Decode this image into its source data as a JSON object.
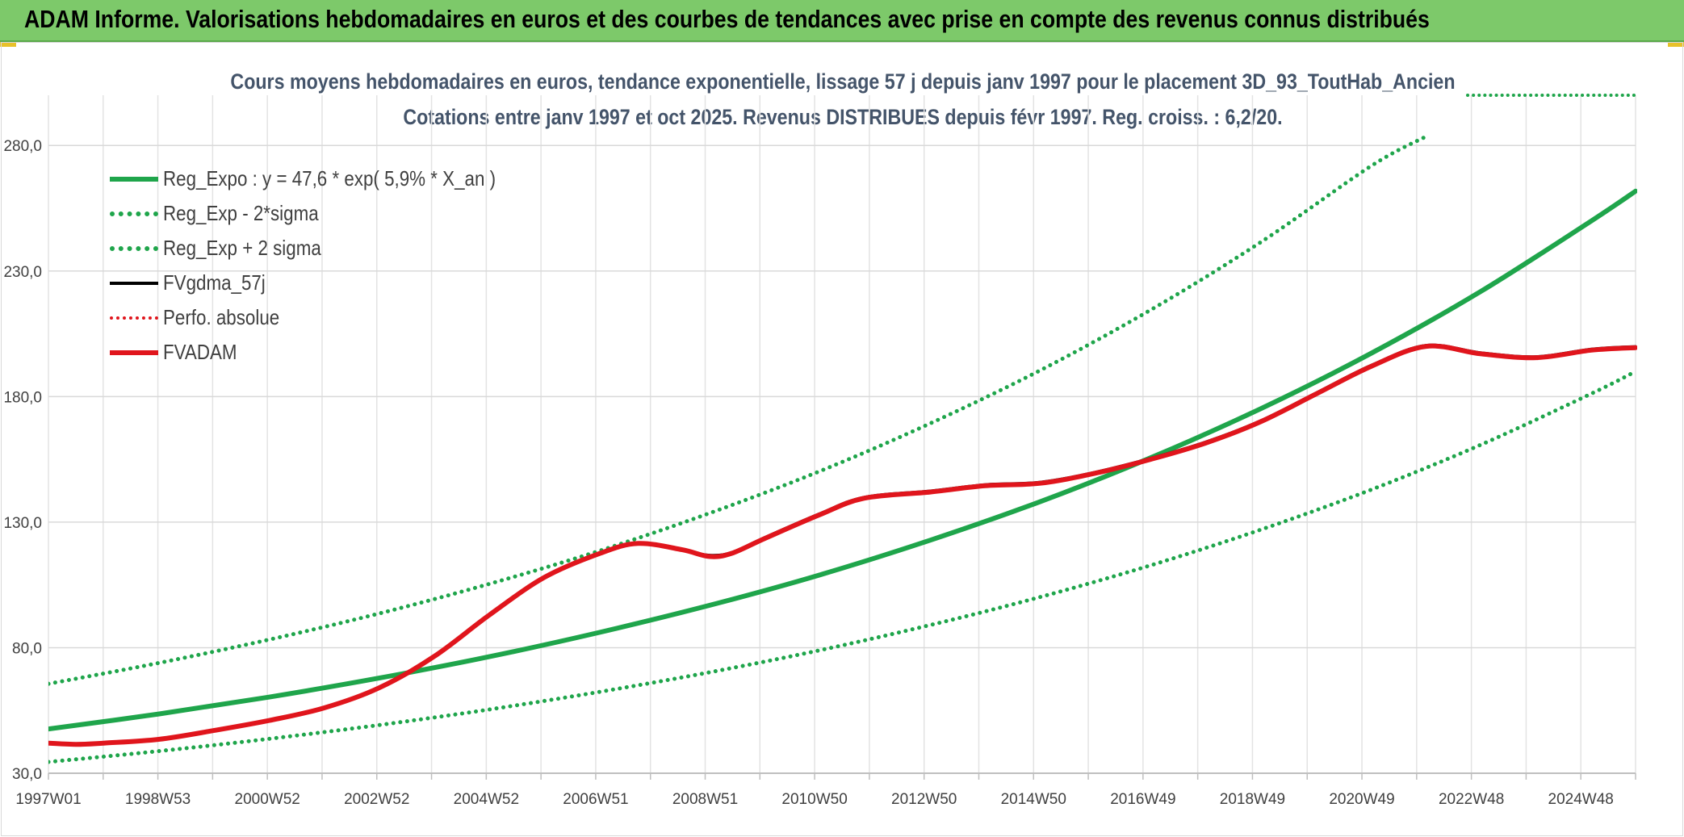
{
  "banner": {
    "title": "ADAM Informe. Valorisations hebdomadaires en euros et des courbes de tendances avec prise en compte des revenus connus distribués"
  },
  "chart_data": {
    "type": "line",
    "title": "Cours moyens hebdomadaires en euros, tendance exponentielle, lissage 57 j depuis janv 1997 pour le placement 3D_93_ToutHab_Ancien",
    "subtitle": "Cotations entre janv 1997 et oct 2025. Revenus DISTRIBUES depuis févr 1997. Reg. croiss. : 6,2/20.",
    "xlabel": "",
    "ylabel": "",
    "ylim": [
      30,
      300
    ],
    "yticks": [
      30,
      80,
      130,
      180,
      230,
      280
    ],
    "ytick_labels": [
      "30,0",
      "80,0",
      "130,0",
      "180,0",
      "230,0",
      "280,0"
    ],
    "xlim": [
      1997.0,
      2025.8
    ],
    "xtick_labels": [
      "1997W01",
      "1998W53",
      "2000W52",
      "2002W52",
      "2004W52",
      "2006W51",
      "2008W51",
      "2010W50",
      "2012W50",
      "2014W50",
      "2016W49",
      "2018W49",
      "2020W49",
      "2022W48",
      "2024W48"
    ],
    "grid": true,
    "legend_position": "top-left",
    "series": [
      {
        "name": "Reg_Expo : y = 47,6 * exp( 5,9% *  X_an )",
        "color": "#1fa54b",
        "style": "solid",
        "width": 6,
        "x": [
          1997.0,
          1999.0,
          2001.0,
          2003.0,
          2005.0,
          2007.0,
          2009.0,
          2011.0,
          2013.0,
          2015.0,
          2017.0,
          2019.0,
          2021.0,
          2023.0,
          2025.0,
          2025.8
        ],
        "y": [
          47.6,
          53.6,
          60.3,
          67.9,
          76.4,
          86.1,
          96.9,
          109.0,
          122.8,
          138.2,
          155.6,
          175.2,
          197.2,
          222.0,
          250.0,
          261.8
        ]
      },
      {
        "name": "Reg_Exp - 2*sigma",
        "color": "#1fa54b",
        "style": "dotted",
        "width": 5,
        "x": [
          1997.0,
          1999.0,
          2001.0,
          2003.0,
          2005.0,
          2007.0,
          2009.0,
          2011.0,
          2013.0,
          2015.0,
          2017.0,
          2019.0,
          2021.0,
          2023.0,
          2025.0,
          2025.8
        ],
        "y": [
          34.5,
          38.8,
          43.7,
          49.2,
          55.4,
          62.4,
          70.2,
          79.0,
          89.0,
          100.2,
          112.8,
          127.0,
          142.9,
          160.9,
          181.2,
          190.0
        ]
      },
      {
        "name": "Reg_Exp + 2 sigma",
        "color": "#1fa54b",
        "style": "dotted",
        "width": 5,
        "x": [
          1997.0,
          1999.0,
          2001.0,
          2003.0,
          2005.0,
          2007.0,
          2009.0,
          2011.0,
          2013.0,
          2015.0,
          2017.0,
          2019.0,
          2021.0,
          2022.0
        ],
        "y": [
          65.6,
          73.9,
          83.2,
          93.6,
          105.4,
          118.6,
          133.6,
          150.3,
          169.3,
          190.5,
          214.5,
          241.5,
          271.8,
          283.6
        ]
      },
      {
        "name": "FVgdma_57j",
        "color": "#000000",
        "style": "solid",
        "width": 3,
        "x": [
          2008.6,
          2009.0,
          2009.4,
          2010.0,
          2011.0,
          2011.8,
          2013.0,
          2014.0,
          2015.0,
          2016.0,
          2017.0,
          2018.0,
          2019.0,
          2020.0,
          2021.0,
          2022.0,
          2023.0,
          2024.0,
          2025.0,
          2025.8
        ],
        "y": [
          118.4,
          116.9,
          118.0,
          124.0,
          133.5,
          140.0,
          142.5,
          145.0,
          146.0,
          150.0,
          155.5,
          162.0,
          170.5,
          181.5,
          192.5,
          200.5,
          197.5,
          196.0,
          199.0,
          200.0
        ]
      },
      {
        "name": "Perfo. absolue",
        "color": "#e0151c",
        "style": "dotted",
        "width": 4,
        "x": [],
        "y": []
      },
      {
        "name": "FVADAM",
        "color": "#e0151c",
        "style": "solid",
        "width": 6,
        "x": [
          1997.0,
          1997.5,
          1998.0,
          1999.0,
          2000.0,
          2001.0,
          2002.0,
          2003.0,
          2004.0,
          2005.0,
          2006.0,
          2007.0,
          2007.7,
          2008.5,
          2009.0,
          2009.4,
          2010.0,
          2011.0,
          2011.8,
          2013.0,
          2014.0,
          2015.0,
          2016.0,
          2017.0,
          2018.0,
          2019.0,
          2020.0,
          2021.0,
          2022.0,
          2023.0,
          2024.0,
          2025.0,
          2025.8
        ],
        "y": [
          42.0,
          41.5,
          42.0,
          43.5,
          47.0,
          51.0,
          56.0,
          64.0,
          76.5,
          93.0,
          108.0,
          117.5,
          121.5,
          119.0,
          116.3,
          117.6,
          123.5,
          133.0,
          139.5,
          142.0,
          144.5,
          145.5,
          149.5,
          155.0,
          161.5,
          170.0,
          181.0,
          192.0,
          200.0,
          197.0,
          195.5,
          198.5,
          199.5
        ]
      }
    ]
  }
}
